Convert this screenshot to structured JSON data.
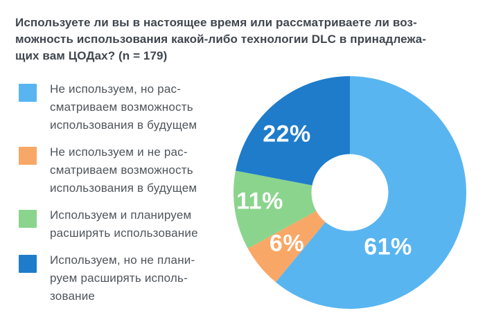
{
  "title": {
    "text": "Используете ли вы в настоящее время или рассматриваете ли воз-\nможность использования какой-либо технологии DLC в принадлежа-\nщих вам ЦОДах? (n = 179)"
  },
  "chart_data": {
    "type": "pie",
    "variant": "donut",
    "title": "Используете ли вы в настоящее время или рассматриваете ли возможность использования какой-либо технологии DLC в принадлежащих вам ЦОДах?",
    "sample_n": 179,
    "start_angle_deg": 0,
    "direction": "clockwise",
    "donut_hole_ratio": 0.33,
    "legend_position": "left",
    "slices": [
      {
        "name": "not-using-but-considering",
        "value": 61,
        "label": "61%",
        "color": "#58B5F0",
        "legend_label": "Не используем, но рас-\nсматриваем возможность\nиспользования в будущем"
      },
      {
        "name": "not-using-not-considering",
        "value": 6,
        "label": "6%",
        "color": "#F9A766",
        "legend_label": "Не используем и не рас-\nсматриваем возможность\nиспользования в будущем"
      },
      {
        "name": "using-planning-to-expand",
        "value": 11,
        "label": "11%",
        "color": "#8BD48D",
        "legend_label": "Используем и планируем\nрасширять использование"
      },
      {
        "name": "using-not-planning-to-expand",
        "value": 22,
        "label": "22%",
        "color": "#1E7CCA",
        "legend_label": "Используем, но не плани-\nруем расширять исполь-\nзование"
      }
    ]
  }
}
